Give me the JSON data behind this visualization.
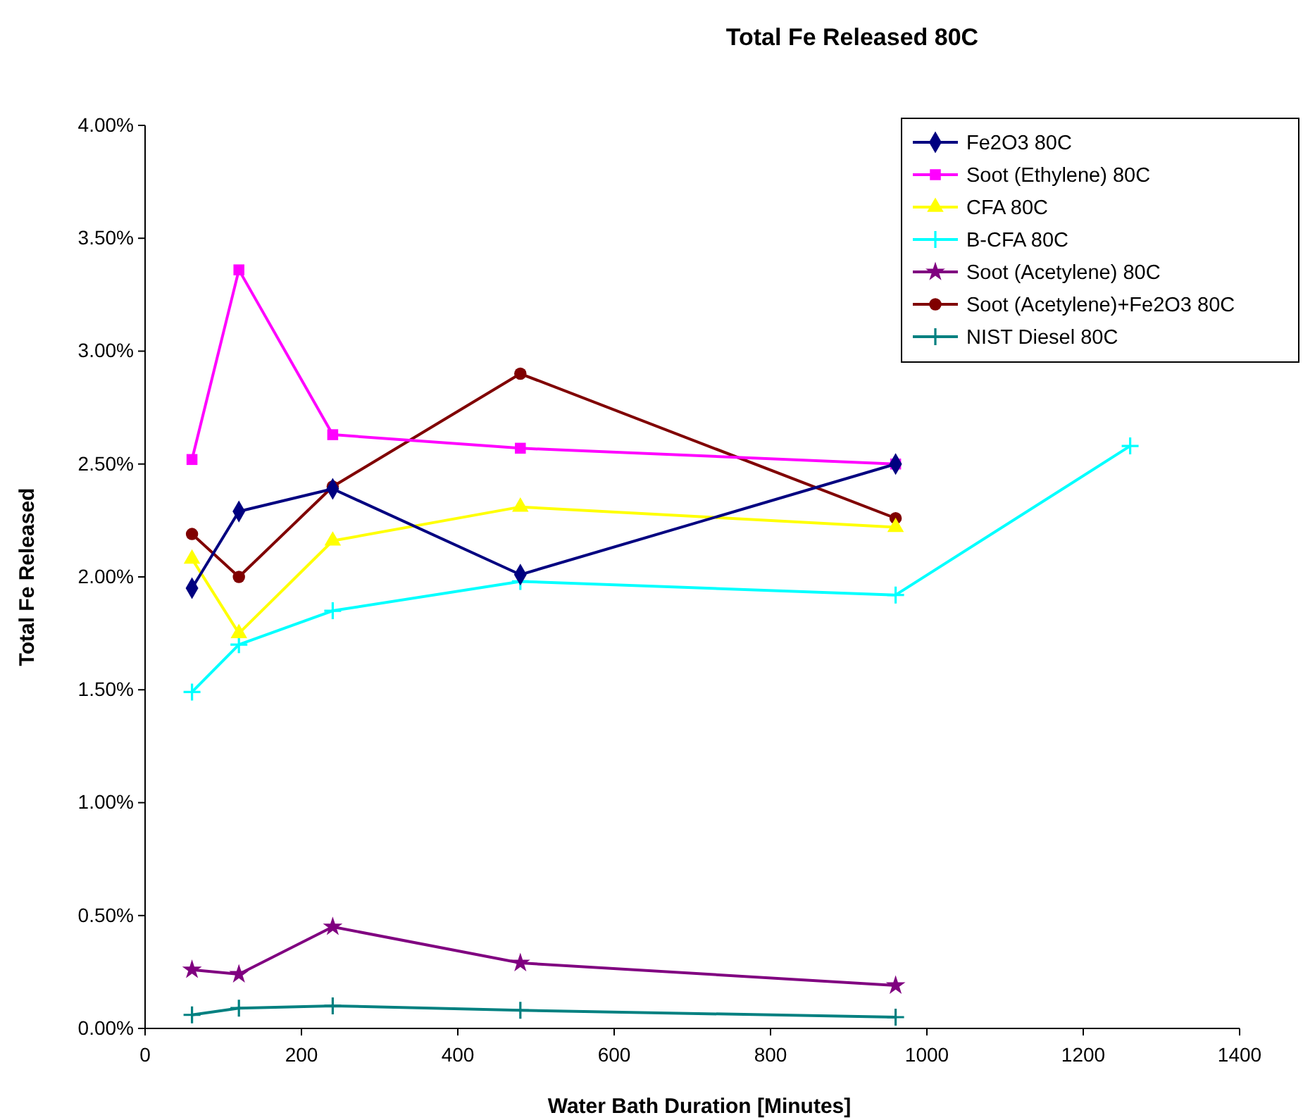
{
  "chart_data": {
    "type": "line",
    "title": "Total Fe Released 80C",
    "xlabel": "Water Bath Duration [Minutes]",
    "ylabel": "Total Fe Released",
    "xlim": [
      0,
      1400
    ],
    "xticks": [
      0,
      200,
      400,
      600,
      800,
      1000,
      1200,
      1400
    ],
    "ylim": [
      0,
      4
    ],
    "yticks": [
      {
        "value": 0,
        "label": "0.00%"
      },
      {
        "value": 0.5,
        "label": "0.50%"
      },
      {
        "value": 1,
        "label": "1.00%"
      },
      {
        "value": 1.5,
        "label": "1.50%"
      },
      {
        "value": 2,
        "label": "2.00%"
      },
      {
        "value": 2.5,
        "label": "2.50%"
      },
      {
        "value": 3,
        "label": "3.00%"
      },
      {
        "value": 3.5,
        "label": "3.50%"
      },
      {
        "value": 4,
        "label": "4.00%"
      }
    ],
    "grid": false,
    "legend": "top right",
    "series": [
      {
        "name": "Fe2O3 80C",
        "color": "#000080",
        "marker": "diamond",
        "x": [
          60,
          120,
          240,
          480,
          960
        ],
        "values": [
          1.95,
          2.29,
          2.39,
          2.01,
          2.5
        ]
      },
      {
        "name": "Soot (Ethylene) 80C",
        "color": "#ff00ff",
        "marker": "square",
        "x": [
          60,
          120,
          240,
          480,
          960
        ],
        "values": [
          2.52,
          3.36,
          2.63,
          2.57,
          2.5
        ]
      },
      {
        "name": "CFA 80C",
        "color": "#ffff00",
        "marker": "triangle",
        "x": [
          60,
          120,
          240,
          480,
          960
        ],
        "values": [
          2.08,
          1.75,
          2.16,
          2.31,
          2.22
        ]
      },
      {
        "name": "B-CFA 80C",
        "color": "#00ffff",
        "marker": "cross",
        "x": [
          60,
          120,
          240,
          480,
          960,
          1260
        ],
        "values": [
          1.49,
          1.7,
          1.85,
          1.98,
          1.92,
          2.58
        ]
      },
      {
        "name": "Soot (Acetylene) 80C",
        "color": "#800080",
        "marker": "star",
        "x": [
          60,
          120,
          240,
          480,
          960
        ],
        "values": [
          0.26,
          0.24,
          0.45,
          0.29,
          0.19
        ]
      },
      {
        "name": "Soot (Acetylene)+Fe2O3 80C",
        "color": "#800000",
        "marker": "circle",
        "x": [
          60,
          120,
          240,
          480,
          960
        ],
        "values": [
          2.19,
          2.0,
          2.4,
          2.9,
          2.26
        ]
      },
      {
        "name": "NIST Diesel 80C",
        "color": "#008080",
        "marker": "cross",
        "x": [
          60,
          120,
          240,
          480,
          960
        ],
        "values": [
          0.06,
          0.09,
          0.1,
          0.08,
          0.05
        ]
      }
    ]
  }
}
